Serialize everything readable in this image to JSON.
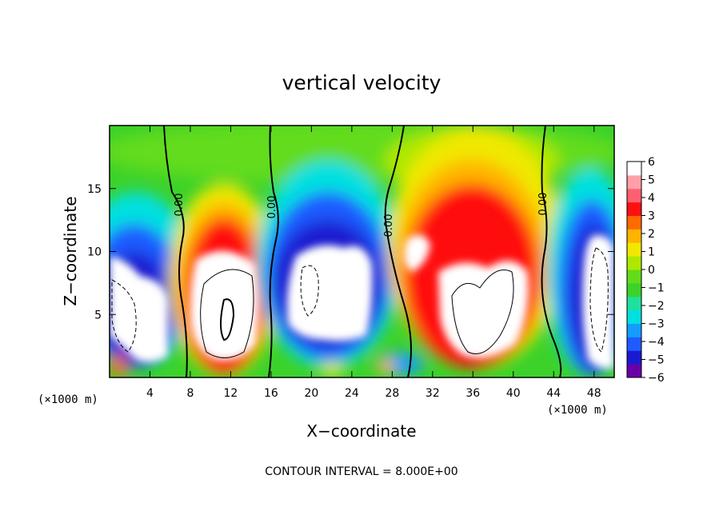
{
  "chart_data": {
    "type": "heatmap",
    "title": "vertical velocity",
    "xlabel": "X−coordinate",
    "ylabel": "Z−coordinate",
    "x_unit": "(×1000 m)",
    "x_unit_right": "(×1000 m)",
    "xlim": [
      0,
      50
    ],
    "ylim": [
      0,
      20
    ],
    "x_ticks": [
      "4",
      "8",
      "12",
      "16",
      "20",
      "24",
      "28",
      "32",
      "36",
      "40",
      "44",
      "48"
    ],
    "y_ticks": [
      "5",
      "10",
      "15"
    ],
    "colorbar": {
      "ticks": [
        "6",
        "5",
        "4",
        "3",
        "2",
        "1",
        "0",
        "−1",
        "−2",
        "−3",
        "−4",
        "−5",
        "−6"
      ],
      "range": [
        -6,
        6
      ],
      "colors": [
        "#6a00a8",
        "#1a1ad0",
        "#1e5cff",
        "#149cff",
        "#00e0e0",
        "#20e0a0",
        "#3cd22a",
        "#62dc1a",
        "#aee800",
        "#f0e800",
        "#ffb400",
        "#ff6a00",
        "#ff1010",
        "#ff6070",
        "#ffa0a8",
        "#ffffff"
      ]
    },
    "zero_contour_label": "0.00",
    "contour_interval_note": "CONTOUR INTERVAL = 8.000E+00",
    "cells": [
      {
        "x": 3,
        "z_top": 13,
        "w": -7
      },
      {
        "x": 11.5,
        "z_top": 13.5,
        "w": 12
      },
      {
        "x": 22,
        "z_top": 13,
        "w": -8
      },
      {
        "x": 37,
        "z_top": 16,
        "w": 12
      },
      {
        "x": 48,
        "z_top": 13,
        "w": -7
      }
    ],
    "grid": false
  }
}
